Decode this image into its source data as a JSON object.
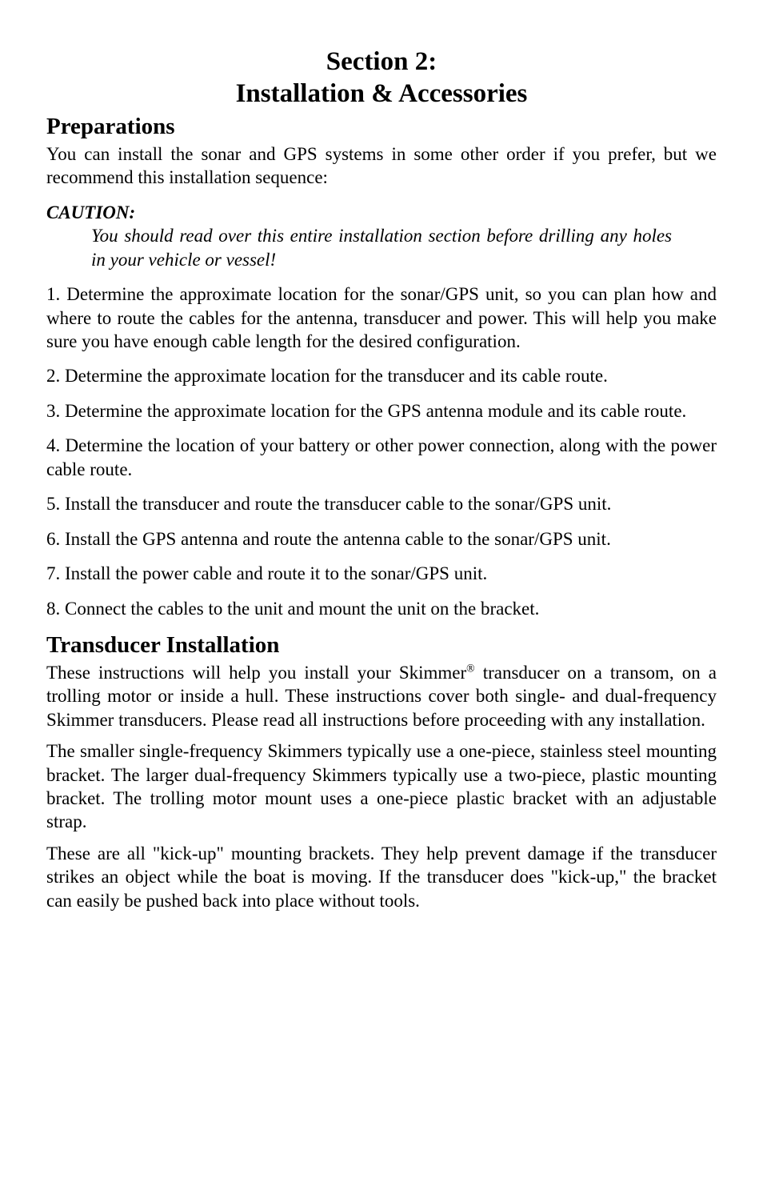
{
  "section": {
    "number_line": "Section 2:",
    "title_line": "Installation & Accessories"
  },
  "preparations": {
    "heading": "Preparations",
    "intro": "You can install the sonar and GPS systems in some other order if you prefer, but we recommend this installation sequence:",
    "caution_label": "CAUTION:",
    "caution_body": "You should read over this entire installation section before drilling any holes in your vehicle or vessel!",
    "steps": [
      "1. Determine the approximate location for the sonar/GPS unit, so you can plan how and where to route the cables for the antenna, transducer and power. This will help you make sure you have enough cable length for the desired configuration.",
      "2. Determine the approximate location for the transducer and its cable route.",
      "3. Determine the approximate location for the GPS antenna module and its cable route.",
      "4. Determine the location of your battery or other power connection, along with the power cable route.",
      "5. Install the transducer and route the transducer cable to the sonar/GPS unit.",
      "6. Install the GPS antenna and route the antenna cable to the sonar/GPS unit.",
      "7. Install the power cable and route it to the sonar/GPS unit.",
      "8. Connect the cables to the unit and mount the unit on the bracket."
    ]
  },
  "transducer": {
    "heading": "Transducer Installation",
    "para1_a": "These instructions will help you install your Skimmer",
    "para1_sup": "®",
    "para1_b": " transducer on a transom, on a trolling motor or inside a hull. These instructions cover both single- and dual-frequency Skimmer transducers. Please read all instructions before proceeding with any installation.",
    "para2": "The smaller single-frequency Skimmers typically use a one-piece, stainless steel mounting bracket. The larger dual-frequency Skimmers typically use a two-piece, plastic mounting bracket. The trolling motor mount uses a one-piece plastic bracket with an adjustable strap.",
    "para3": "These are all \"kick-up\" mounting brackets. They help prevent damage if the transducer strikes an object while the boat is moving. If the transducer does \"kick-up,\" the bracket can easily be pushed back into place without tools."
  }
}
